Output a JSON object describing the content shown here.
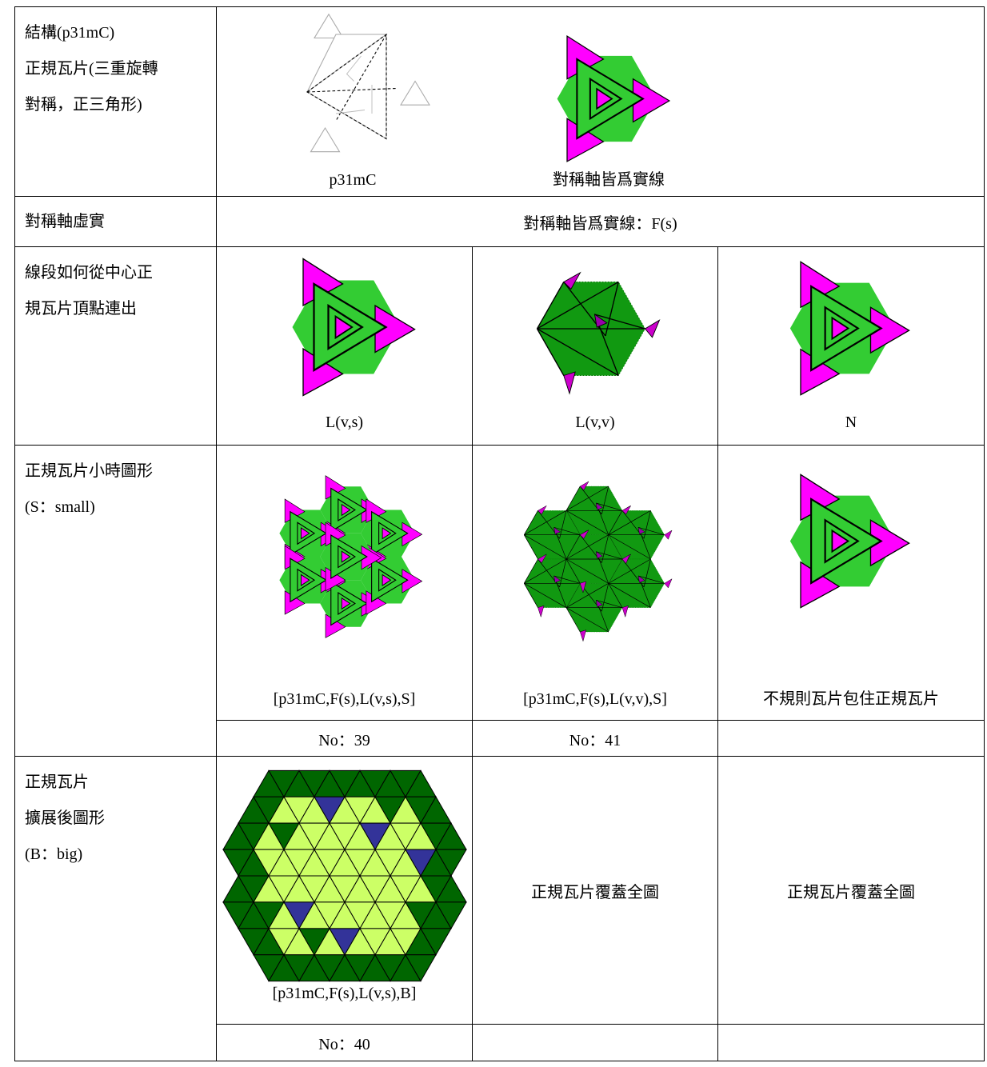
{
  "table": {
    "rows": [
      {
        "label": [
          "結構(p31mC)",
          "正規瓦片(三重旋轉",
          "對稱，正三角形)"
        ],
        "captions": [
          "p31mC",
          "對稱軸皆爲實線"
        ]
      },
      {
        "label": [
          "對稱軸虛實"
        ],
        "text": "對稱軸皆爲實線：F(s)"
      },
      {
        "label": [
          "線段如何從中心正",
          "規瓦片頂點連出"
        ],
        "captions": [
          "L(v,s)",
          "L(v,v)",
          "N"
        ]
      },
      {
        "label": [
          "正規瓦片小時圖形",
          "(S：small)"
        ],
        "captions": [
          "[p31mC,F(s),L(v,s),S]",
          "[p31mC,F(s),L(v,v),S]",
          "不規則瓦片包住正規瓦片"
        ],
        "numbers": [
          "No：39",
          "No：41"
        ]
      },
      {
        "label": [
          "正規瓦片",
          "擴展後圖形",
          "(B：big)"
        ],
        "captions": [
          "[p31mC,F(s),L(v,s),B]",
          "正規瓦片覆蓋全圖",
          "正規瓦片覆蓋全圖"
        ],
        "numbers": [
          "No：40"
        ]
      }
    ]
  }
}
